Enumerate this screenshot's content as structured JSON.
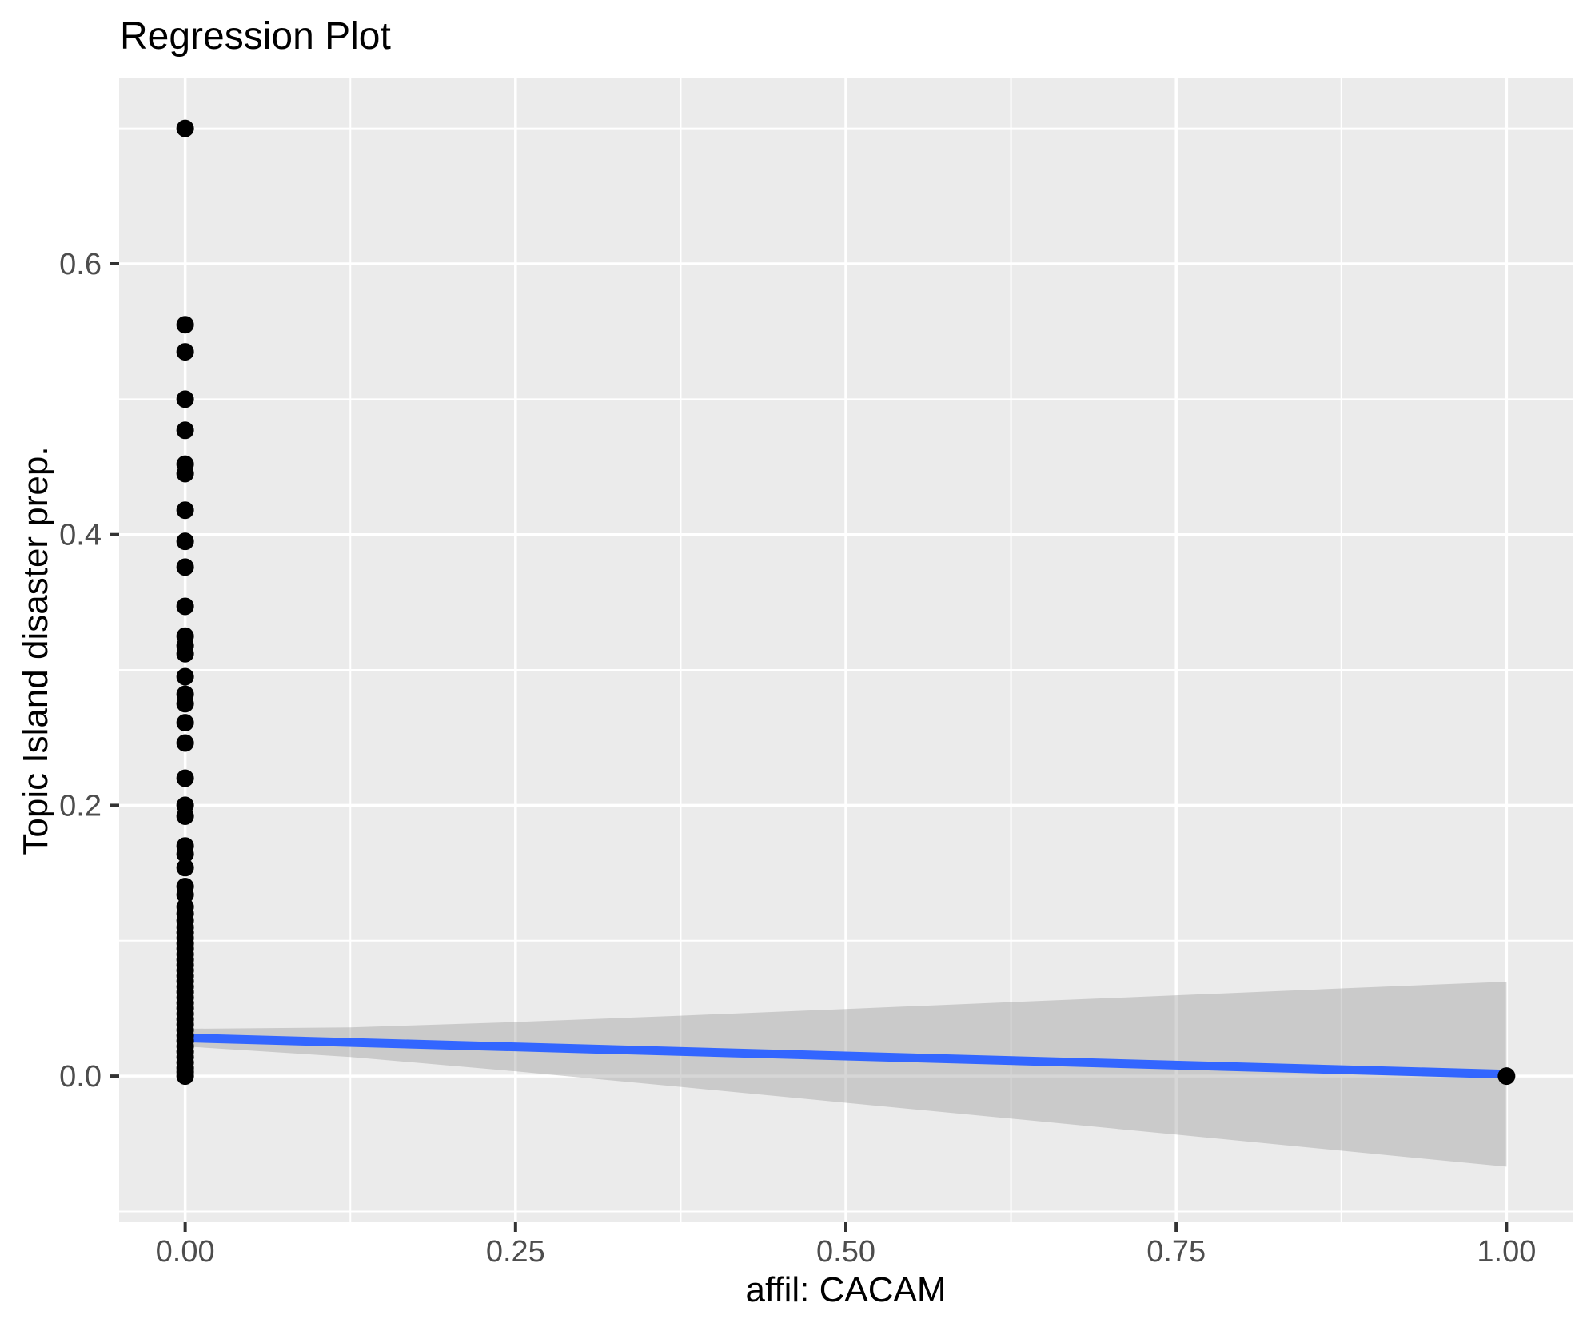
{
  "title": "Regression Plot",
  "chart_data": {
    "type": "scatter",
    "title": "Regression Plot",
    "xlabel": "affil: CACAM",
    "ylabel": "Topic Island disaster prep.",
    "xlim": [
      -0.05,
      1.05
    ],
    "ylim": [
      -0.108,
      0.737
    ],
    "grid": true,
    "legend": "none",
    "x_ticks": {
      "values": [
        0,
        0.25,
        0.5,
        0.75,
        1.0
      ],
      "labels": [
        "0.00",
        "0.25",
        "0.50",
        "0.75",
        "1.00"
      ]
    },
    "y_ticks": {
      "values": [
        0,
        0.2,
        0.4,
        0.6
      ],
      "labels": [
        "0.0",
        "0.2",
        "0.4",
        "0.6"
      ]
    },
    "x_minor": [
      0.125,
      0.375,
      0.625,
      0.875
    ],
    "y_minor": [
      -0.1,
      0.1,
      0.3,
      0.5,
      0.7
    ],
    "points": [
      [
        0,
        0.7
      ],
      [
        0,
        0.555
      ],
      [
        0,
        0.535
      ],
      [
        0,
        0.5
      ],
      [
        0,
        0.477
      ],
      [
        0,
        0.452
      ],
      [
        0,
        0.445
      ],
      [
        0,
        0.418
      ],
      [
        0,
        0.395
      ],
      [
        0,
        0.376
      ],
      [
        0,
        0.347
      ],
      [
        0,
        0.325
      ],
      [
        0,
        0.318
      ],
      [
        0,
        0.312
      ],
      [
        0,
        0.295
      ],
      [
        0,
        0.282
      ],
      [
        0,
        0.275
      ],
      [
        0,
        0.261
      ],
      [
        0,
        0.246
      ],
      [
        0,
        0.22
      ],
      [
        0,
        0.2
      ],
      [
        0,
        0.192
      ],
      [
        0,
        0.17
      ],
      [
        0,
        0.164
      ],
      [
        0,
        0.154
      ],
      [
        0,
        0.14
      ],
      [
        0,
        0.134
      ],
      [
        0,
        0.125
      ],
      [
        0,
        0.12
      ],
      [
        0,
        0.115
      ],
      [
        0,
        0.11
      ],
      [
        0,
        0.106
      ],
      [
        0,
        0.102
      ],
      [
        0,
        0.098
      ],
      [
        0,
        0.094
      ],
      [
        0,
        0.09
      ],
      [
        0,
        0.086
      ],
      [
        0,
        0.082
      ],
      [
        0,
        0.078
      ],
      [
        0,
        0.074
      ],
      [
        0,
        0.07
      ],
      [
        0,
        0.066
      ],
      [
        0,
        0.062
      ],
      [
        0,
        0.058
      ],
      [
        0,
        0.054
      ],
      [
        0,
        0.05
      ],
      [
        0,
        0.046
      ],
      [
        0,
        0.042
      ],
      [
        0,
        0.038
      ],
      [
        0,
        0.034
      ],
      [
        0,
        0.03
      ],
      [
        0,
        0.026
      ],
      [
        0,
        0.022
      ],
      [
        0,
        0.018
      ],
      [
        0,
        0.014
      ],
      [
        0,
        0.01
      ],
      [
        0,
        0.006
      ],
      [
        0,
        0.003
      ],
      [
        0,
        0.0
      ],
      [
        1,
        0.0
      ]
    ],
    "regression_line": {
      "x": [
        0,
        1
      ],
      "y": [
        0.0282,
        0.0014
      ]
    },
    "ribbon": {
      "x": [
        0,
        0.125,
        0.25,
        0.375,
        0.5,
        0.625,
        0.75,
        0.875,
        1
      ],
      "upper": [
        0.0349,
        0.0359,
        0.0399,
        0.0446,
        0.0495,
        0.0546,
        0.0596,
        0.0647,
        0.0697
      ],
      "lower": [
        0.0219,
        0.0141,
        0.0035,
        -0.008,
        -0.0197,
        -0.0314,
        -0.0432,
        -0.0551,
        -0.0669
      ]
    },
    "colors": {
      "point": "#000000",
      "line": "#3366FF",
      "ribbon": "#999999",
      "ribbon_opacity": 0.4,
      "panel": "#EBEBEB",
      "grid": "#FFFFFF",
      "tick_label": "#4D4D4D",
      "tick_mark": "#333333",
      "text": "#000000"
    }
  }
}
